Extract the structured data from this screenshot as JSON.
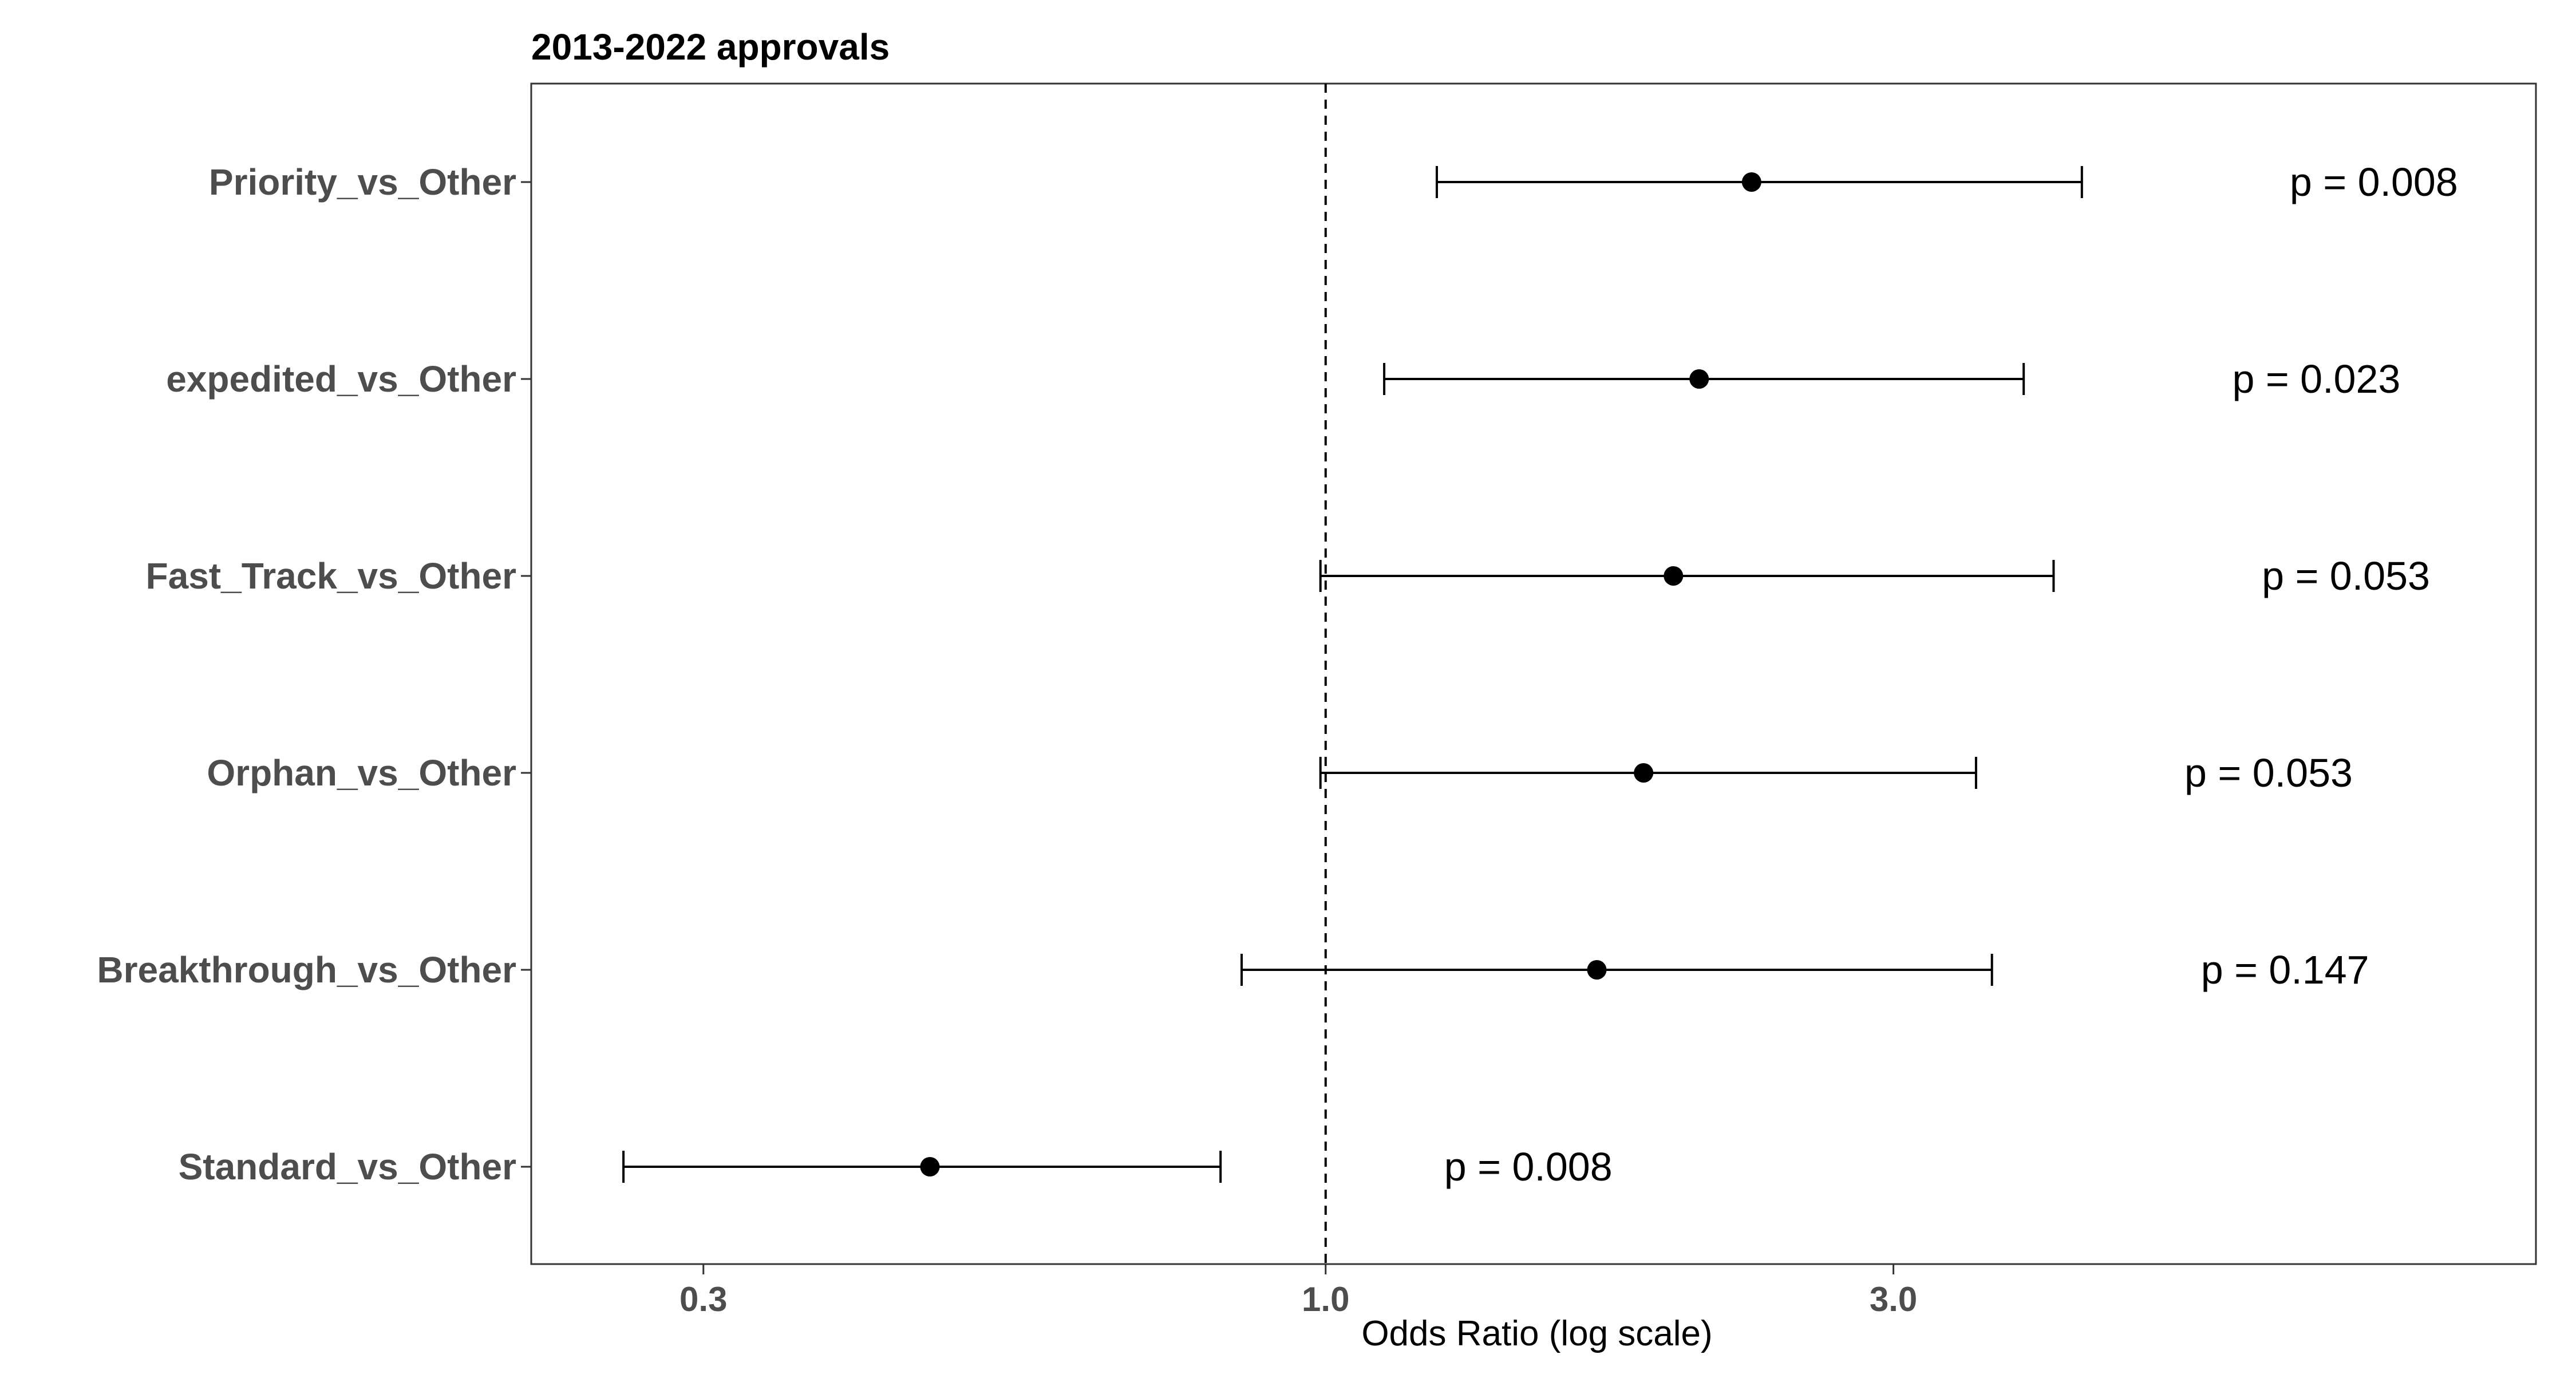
{
  "chart_data": {
    "type": "forest",
    "title": "2013-2022 approvals",
    "xlabel": "Odds Ratio (log scale)",
    "ylabel": "",
    "x_scale": "log",
    "xlim": [
      0.215,
      10.4
    ],
    "x_ticks": [
      0.3,
      1.0,
      3.0
    ],
    "x_tick_labels": [
      "0.3",
      "1.0",
      "3.0"
    ],
    "reference_line": 1.0,
    "grid": false,
    "legend": "none",
    "rows": [
      {
        "label": "Priority_vs_Other",
        "or": 2.28,
        "lower": 1.24,
        "upper": 4.32,
        "p_label": "p = 0.008",
        "p_pos": 7.6
      },
      {
        "label": "expedited_vs_Other",
        "or": 2.06,
        "lower": 1.12,
        "upper": 3.86,
        "p_label": "p = 0.023",
        "p_pos": 6.8
      },
      {
        "label": "Fast_Track_vs_Other",
        "or": 1.96,
        "lower": 0.99,
        "upper": 4.09,
        "p_label": "p = 0.053",
        "p_pos": 7.2
      },
      {
        "label": "Orphan_vs_Other",
        "or": 1.85,
        "lower": 0.99,
        "upper": 3.52,
        "p_label": "p = 0.053",
        "p_pos": 6.2
      },
      {
        "label": "Breakthrough_vs_Other",
        "or": 1.69,
        "lower": 0.85,
        "upper": 3.63,
        "p_label": "p = 0.147",
        "p_pos": 6.4
      },
      {
        "label": "Standard_vs_Other",
        "or": 0.465,
        "lower": 0.257,
        "upper": 0.816,
        "p_label": "p = 0.008",
        "p_pos": 1.48
      }
    ],
    "colors": {
      "marks": "#000000",
      "tick_text": "#4d4d4d",
      "panel_border": "#333333"
    }
  }
}
